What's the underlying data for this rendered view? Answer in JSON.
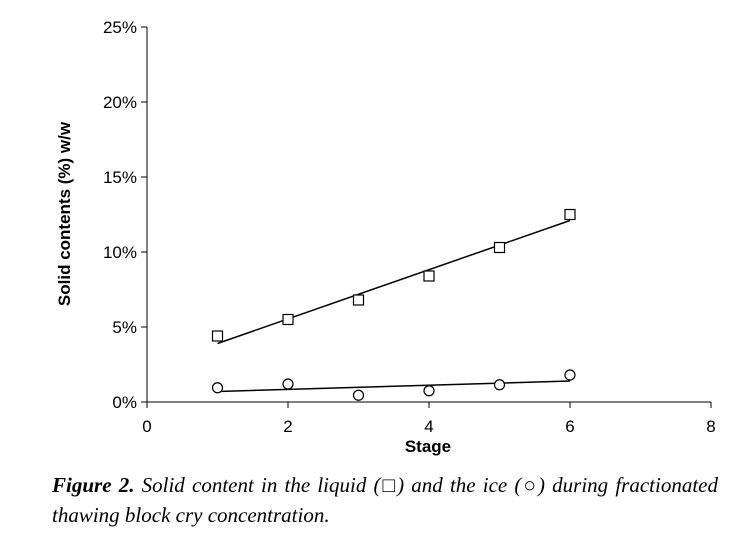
{
  "chart_data": {
    "type": "scatter",
    "xlabel": "Stage",
    "ylabel": "Solid contents (%) w/w",
    "xlim": [
      0,
      8
    ],
    "ylim": [
      0,
      25
    ],
    "x_ticks": [
      "0",
      "2",
      "4",
      "6",
      "8"
    ],
    "y_ticks": [
      "0%",
      "5%",
      "10%",
      "15%",
      "20%",
      "25%"
    ],
    "grid": false,
    "legend": "none",
    "series": [
      {
        "marker": "square",
        "x": [
          1,
          2,
          3,
          4,
          5,
          6
        ],
        "values": [
          4.4,
          5.5,
          6.8,
          8.4,
          10.3,
          12.5
        ],
        "trendline": [
          [
            1,
            3.9
          ],
          [
            6,
            12.1
          ]
        ]
      },
      {
        "marker": "circle",
        "x": [
          1,
          2,
          3,
          4,
          5,
          6
        ],
        "values": [
          0.95,
          1.2,
          0.45,
          0.75,
          1.15,
          1.8
        ],
        "trendline": [
          [
            1,
            0.7
          ],
          [
            6,
            1.4
          ]
        ]
      }
    ]
  },
  "caption": {
    "label": "Figure 2.",
    "text": "Solid content in the liquid (□) and the ice (○) during fractionated thawing block cry concentration."
  }
}
